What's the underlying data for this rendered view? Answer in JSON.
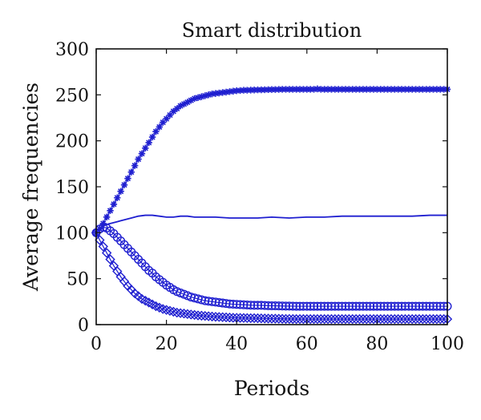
{
  "chart_data": {
    "type": "line",
    "title": "Smart distribution",
    "xlabel": "Periods",
    "ylabel": "Average frequencies",
    "xlim": [
      0,
      100
    ],
    "ylim": [
      0,
      300
    ],
    "xticks": [
      "0",
      "20",
      "40",
      "60",
      "80",
      "100"
    ],
    "yticks": [
      "0",
      "50",
      "100",
      "150",
      "200",
      "250",
      "300"
    ],
    "grid": false,
    "legend": "none",
    "color": "#1f1fd0",
    "series": [
      {
        "marker": "star",
        "x": [
          0,
          1,
          2,
          3,
          4,
          5,
          6,
          7,
          8,
          9,
          10,
          11,
          12,
          13,
          14,
          15,
          16,
          17,
          18,
          19,
          20,
          21,
          22,
          23,
          24,
          25,
          26,
          27,
          28,
          29,
          30,
          31,
          32,
          33,
          34,
          35,
          36,
          37,
          38,
          39,
          40,
          41,
          42,
          43,
          44,
          45,
          46,
          47,
          48,
          49,
          50,
          51,
          52,
          53,
          54,
          55,
          56,
          57,
          58,
          59,
          60,
          61,
          62,
          63,
          64,
          65,
          66,
          67,
          68,
          69,
          70,
          71,
          72,
          73,
          74,
          75,
          76,
          77,
          78,
          79,
          80,
          81,
          82,
          83,
          84,
          85,
          86,
          87,
          88,
          89,
          90,
          91,
          92,
          93,
          94,
          95,
          96,
          97,
          98,
          99,
          100
        ],
        "y": [
          100,
          104,
          110,
          117,
          124,
          131,
          138,
          145,
          152,
          159,
          166,
          173,
          180,
          186,
          192,
          198,
          204,
          210,
          215,
          220,
          224,
          228,
          232,
          235,
          238,
          240,
          242,
          244,
          246,
          247,
          248,
          249,
          250,
          251,
          251.5,
          252,
          252.5,
          253,
          253.5,
          254,
          254.5,
          254.7,
          255,
          255,
          255.2,
          255.3,
          255.5,
          255.5,
          255.6,
          255.7,
          255.8,
          255.8,
          255.9,
          256,
          256,
          256,
          256,
          256,
          256,
          256,
          256,
          256,
          256,
          256.5,
          256,
          256,
          256,
          256,
          256,
          256,
          256,
          256,
          256,
          256,
          256,
          256,
          256,
          256,
          256,
          256,
          256,
          256,
          256,
          256,
          256,
          256,
          256,
          256,
          256,
          256,
          256,
          256,
          256,
          256,
          256,
          256,
          256,
          256,
          256,
          256,
          256
        ]
      },
      {
        "marker": "none",
        "x": [
          0,
          1,
          2,
          3,
          4,
          5,
          6,
          7,
          8,
          9,
          10,
          12,
          14,
          16,
          18,
          20,
          22,
          24,
          26,
          28,
          30,
          34,
          38,
          42,
          46,
          50,
          55,
          60,
          65,
          70,
          75,
          80,
          85,
          90,
          95,
          100
        ],
        "y": [
          100,
          104,
          107,
          109,
          110,
          111,
          112,
          113,
          114,
          115,
          116,
          118,
          119,
          119,
          118,
          117,
          117,
          118,
          118,
          117,
          117,
          117,
          116,
          116,
          116,
          117,
          116,
          117,
          117,
          118,
          118,
          118,
          118,
          118,
          119,
          119
        ]
      },
      {
        "marker": "circle",
        "x": [
          0,
          1,
          2,
          3,
          4,
          5,
          6,
          7,
          8,
          9,
          10,
          11,
          12,
          13,
          14,
          15,
          16,
          17,
          18,
          19,
          20,
          21,
          22,
          23,
          24,
          25,
          26,
          27,
          28,
          29,
          30,
          31,
          32,
          33,
          34,
          35,
          36,
          37,
          38,
          39,
          40,
          41,
          42,
          43,
          44,
          45,
          46,
          47,
          48,
          49,
          50,
          51,
          52,
          53,
          54,
          55,
          56,
          57,
          58,
          59,
          60,
          61,
          62,
          63,
          64,
          65,
          66,
          67,
          68,
          69,
          70,
          71,
          72,
          73,
          74,
          75,
          76,
          77,
          78,
          79,
          80,
          81,
          82,
          83,
          84,
          85,
          86,
          87,
          88,
          89,
          90,
          91,
          92,
          93,
          94,
          95,
          96,
          97,
          98,
          99,
          100
        ],
        "y": [
          100,
          104,
          106,
          105,
          102,
          99,
          95,
          91,
          87,
          83,
          79,
          75,
          71,
          67,
          63,
          59,
          56,
          52,
          49,
          46,
          43,
          40.5,
          38,
          36,
          34.5,
          33,
          31.5,
          30,
          29,
          28,
          27,
          26,
          25.5,
          25,
          24.5,
          24,
          23.5,
          23,
          22.5,
          22.2,
          22,
          21.8,
          21.6,
          21.4,
          21.2,
          21,
          21,
          21,
          20.8,
          20.6,
          20.5,
          20.5,
          20.4,
          20.3,
          20.2,
          20.2,
          20.1,
          20,
          20,
          20,
          20,
          20,
          20,
          20,
          20,
          20,
          20,
          20,
          20,
          20,
          20,
          20,
          20,
          20,
          20,
          20,
          20,
          20,
          20,
          20,
          20,
          20,
          20,
          20,
          20,
          20,
          20,
          20,
          20,
          20,
          20,
          20,
          20,
          20,
          20,
          20,
          20,
          20,
          20,
          20,
          20
        ]
      },
      {
        "marker": "diamond",
        "x": [
          0,
          1,
          2,
          3,
          4,
          5,
          6,
          7,
          8,
          9,
          10,
          11,
          12,
          13,
          14,
          15,
          16,
          17,
          18,
          19,
          20,
          21,
          22,
          23,
          24,
          25,
          26,
          27,
          28,
          29,
          30,
          31,
          32,
          33,
          34,
          35,
          36,
          37,
          38,
          39,
          40,
          41,
          42,
          43,
          44,
          45,
          46,
          47,
          48,
          49,
          50,
          51,
          52,
          53,
          54,
          55,
          56,
          57,
          58,
          59,
          60,
          61,
          62,
          63,
          64,
          65,
          66,
          67,
          68,
          69,
          70,
          71,
          72,
          73,
          74,
          75,
          76,
          77,
          78,
          79,
          80,
          81,
          82,
          83,
          84,
          85,
          86,
          87,
          88,
          89,
          90,
          91,
          92,
          93,
          94,
          95,
          96,
          97,
          98,
          99,
          100
        ],
        "y": [
          100,
          92,
          85,
          78,
          71,
          64,
          58,
          52,
          47,
          42,
          38,
          34,
          31,
          28,
          26,
          24,
          22,
          20,
          18.5,
          17,
          16,
          15,
          14,
          13,
          12.5,
          12,
          11.5,
          11,
          10.5,
          10,
          9.7,
          9.4,
          9.1,
          8.8,
          8.5,
          8.3,
          8.1,
          7.9,
          7.7,
          7.5,
          7.4,
          7.3,
          7.2,
          7.1,
          7,
          7,
          6.9,
          6.8,
          6.7,
          6.6,
          6.5,
          6.5,
          6.4,
          6.3,
          6.2,
          6.2,
          6.1,
          6,
          6,
          6,
          6,
          6,
          6,
          6,
          6,
          6,
          6,
          6,
          6,
          6,
          6,
          6,
          6,
          6,
          6,
          6,
          6,
          6,
          6,
          6,
          6,
          6,
          6,
          6,
          6,
          6,
          6,
          6,
          6,
          6,
          6,
          6,
          6,
          6,
          6,
          6,
          6,
          6,
          6,
          6,
          6
        ]
      }
    ]
  }
}
